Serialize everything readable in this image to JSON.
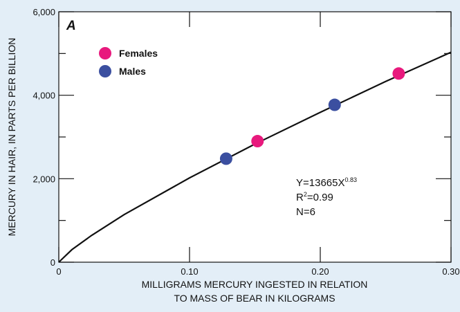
{
  "chart_data": {
    "type": "scatter",
    "panel_label": "A",
    "x_label": [
      "MILLIGRAMS MERCURY INGESTED IN RELATION",
      "TO MASS OF BEAR IN KILOGRAMS"
    ],
    "y_label": "MERCURY IN HAIR, IN PARTS PER BILLION",
    "xlim": [
      0,
      0.3
    ],
    "ylim": [
      0,
      6000
    ],
    "xticks": [
      0,
      {
        "value": 0.1,
        "label": "0.10"
      },
      {
        "value": 0.2,
        "label": "0.20"
      },
      {
        "value": 0.3,
        "label": "0.30"
      }
    ],
    "yticks": [
      0,
      {
        "value": 2000,
        "label": "2,000"
      },
      {
        "value": 4000,
        "label": "4,000"
      },
      {
        "value": 6000,
        "label": "6,000"
      }
    ],
    "yminor": [
      1000,
      3000,
      5000
    ],
    "series": [
      {
        "name": "Females",
        "color": "#e8197d",
        "x": [
          0.152,
          0.26
        ],
        "values": [
          2900,
          4520
        ]
      },
      {
        "name": "Males",
        "color": "#3b4fa0",
        "x": [
          0.128,
          0.211
        ],
        "values": [
          2480,
          3770
        ]
      }
    ],
    "fit_curve": {
      "color": "#111111",
      "x": [
        0,
        0.01,
        0.025,
        0.05,
        0.1,
        0.15,
        0.2,
        0.25,
        0.3
      ],
      "values": [
        0,
        300,
        640,
        1140,
        2020,
        2830,
        3590,
        4330,
        5030
      ]
    },
    "annotation": {
      "equation": "Y=13665X",
      "exponent": "0.83",
      "r": "R",
      "r_sup": "2",
      "r_value": "=0.99",
      "n": "N=6"
    }
  }
}
